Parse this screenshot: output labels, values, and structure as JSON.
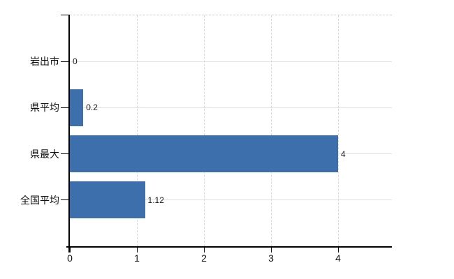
{
  "chart_data": {
    "type": "bar",
    "orientation": "horizontal",
    "title": "",
    "categories": [
      "岩出市",
      "県平均",
      "県最大",
      "全国平均"
    ],
    "values": [
      0,
      0.2,
      4,
      1.12
    ],
    "value_labels": [
      "0",
      "0.2",
      "4",
      "1.12"
    ],
    "x_ticks": [
      0,
      1,
      2,
      3,
      4
    ],
    "x_tick_labels": [
      "0",
      "1",
      "2",
      "3",
      "4"
    ],
    "xlim": [
      0,
      4.8
    ],
    "grid": true,
    "legend": "none",
    "bar_color": "#3e6fad",
    "gridline_color_h": "#dde3dd",
    "gridline_color_v": "#d6d6d6",
    "axis_color": "#000000",
    "text_color": "#111111"
  }
}
